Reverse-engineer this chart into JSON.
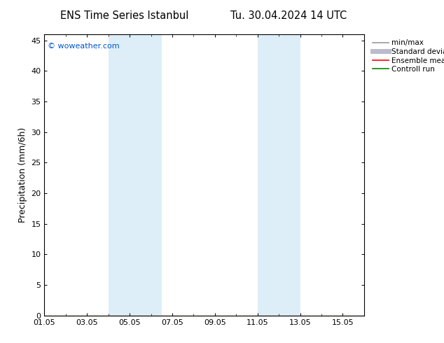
{
  "title_left": "ENS Time Series Istanbul",
  "title_right": "Tu. 30.04.2024 14 UTC",
  "ylabel": "Precipitation (mm/6h)",
  "xlim": [
    0,
    15
  ],
  "ylim": [
    0,
    46
  ],
  "yticks": [
    0,
    5,
    10,
    15,
    20,
    25,
    30,
    35,
    40,
    45
  ],
  "xtick_labels": [
    "01.05",
    "03.05",
    "05.05",
    "07.05",
    "09.05",
    "11.05",
    "13.05",
    "15.05"
  ],
  "xtick_positions": [
    0,
    2,
    4,
    6,
    8,
    10,
    12,
    14
  ],
  "watermark": "© woweather.com",
  "watermark_color": "#0055cc",
  "bg_color": "#ffffff",
  "plot_bg_color": "#ffffff",
  "shaded_bands": [
    {
      "xmin": 3.0,
      "xmax": 5.5,
      "color": "#ddeef8"
    },
    {
      "xmin": 10.0,
      "xmax": 12.0,
      "color": "#ddeef8"
    }
  ],
  "legend_entries": [
    {
      "label": "min/max",
      "color": "#999999",
      "lw": 1.2
    },
    {
      "label": "Standard deviation",
      "color": "#bbbbcc",
      "lw": 5
    },
    {
      "label": "Ensemble mean run",
      "color": "#ff0000",
      "lw": 1.2
    },
    {
      "label": "Controll run",
      "color": "#008800",
      "lw": 1.2
    }
  ],
  "title_fontsize": 10.5,
  "axis_fontsize": 9,
  "tick_fontsize": 8,
  "legend_fontsize": 7.5
}
